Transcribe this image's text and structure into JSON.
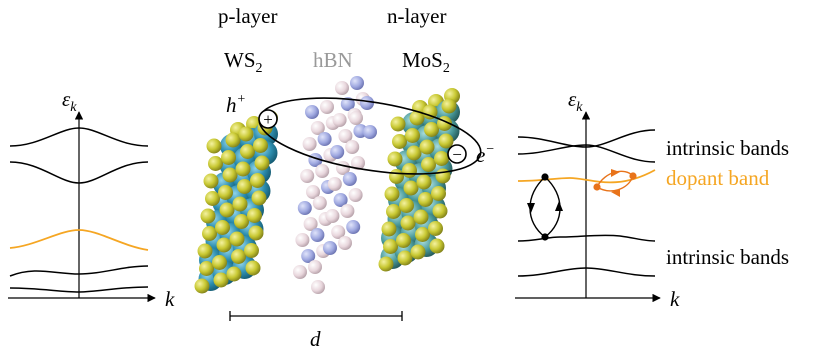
{
  "left_panel": {
    "y_label_main": "ε",
    "y_label_sub": "k",
    "x_label": "k"
  },
  "center_panel": {
    "p_layer_label": "p-layer",
    "n_layer_label": "n-layer",
    "ws2_main": "WS",
    "ws2_sub": "2",
    "hbn_label": "hBN",
    "mos2_main": "MoS",
    "mos2_sub": "2",
    "hole_main": "h",
    "hole_sup": "+",
    "electron_main": "e",
    "electron_sup": "−",
    "distance_label": "d",
    "hole_symbol": "+",
    "electron_symbol": "−"
  },
  "right_panel": {
    "y_label_main": "ε",
    "y_label_sub": "k",
    "x_label": "k",
    "upper_bands_label": "intrinsic bands",
    "dopant_band_label": "dopant band",
    "lower_bands_label": "intrinsic bands"
  },
  "colors": {
    "dopant": "#F5A623",
    "dopant_text": "#F5A623",
    "arrow_dots": "#E8731A",
    "hbn_text": "#999999",
    "sulfur": "#C8C832",
    "tungsten": "#2E8FB0",
    "molybdenum": "#4A9A9A",
    "boron": "#9FA8E0",
    "nitrogen": "#E8D6DC"
  }
}
